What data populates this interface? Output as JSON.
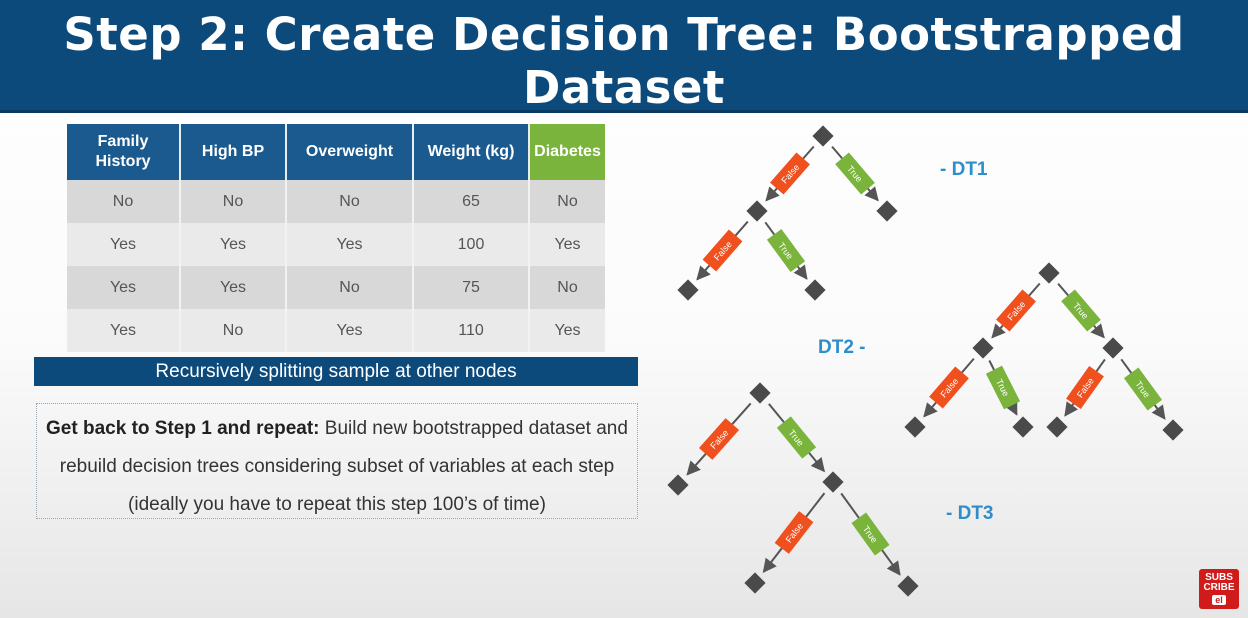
{
  "header": {
    "title": "Step 2: Create Decision Tree: Bootstrapped Dataset"
  },
  "table": {
    "columns": [
      "Family History",
      "High BP",
      "Overweight",
      "Weight (kg)",
      "Diabetes"
    ],
    "rows": [
      [
        "No",
        "No",
        "No",
        "65",
        "No"
      ],
      [
        "Yes",
        "Yes",
        "Yes",
        "100",
        "Yes"
      ],
      [
        "Yes",
        "Yes",
        "No",
        "75",
        "No"
      ],
      [
        "Yes",
        "No",
        "Yes",
        "110",
        "Yes"
      ]
    ]
  },
  "banner": {
    "text": "Recursively splitting sample at other nodes"
  },
  "step": {
    "bold": "Get back to Step 1 and repeat:",
    "text": " Build new bootstrapped dataset and rebuild decision trees considering subset of variables at each step (ideally you have to repeat this step 100’s of time)"
  },
  "trees": {
    "dt1_label": "- DT1",
    "dt2_label": "DT2 -",
    "dt3_label": "- DT3",
    "false_label": "False",
    "true_label": "True"
  },
  "colors": {
    "header": "#0d4a7c",
    "false": "#f0501e",
    "true": "#7ab43c",
    "node": "#4a4a4a",
    "label": "#2e8ec9"
  },
  "subscribe": {
    "line1": "SUBS",
    "line2": "CRIBE",
    "badge": "el"
  }
}
